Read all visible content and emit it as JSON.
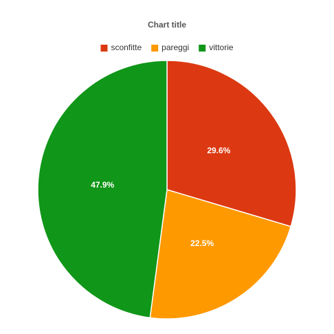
{
  "chart_data": {
    "type": "pie",
    "title": "Chart title",
    "categories": [
      "sconfitte",
      "pareggi",
      "vittorie"
    ],
    "values": [
      29.6,
      22.5,
      47.9
    ],
    "value_labels": [
      "29.6%",
      "22.5%",
      "47.9%"
    ],
    "colors": [
      "#dc3912",
      "#ff9900",
      "#109618"
    ],
    "legend": "top"
  }
}
